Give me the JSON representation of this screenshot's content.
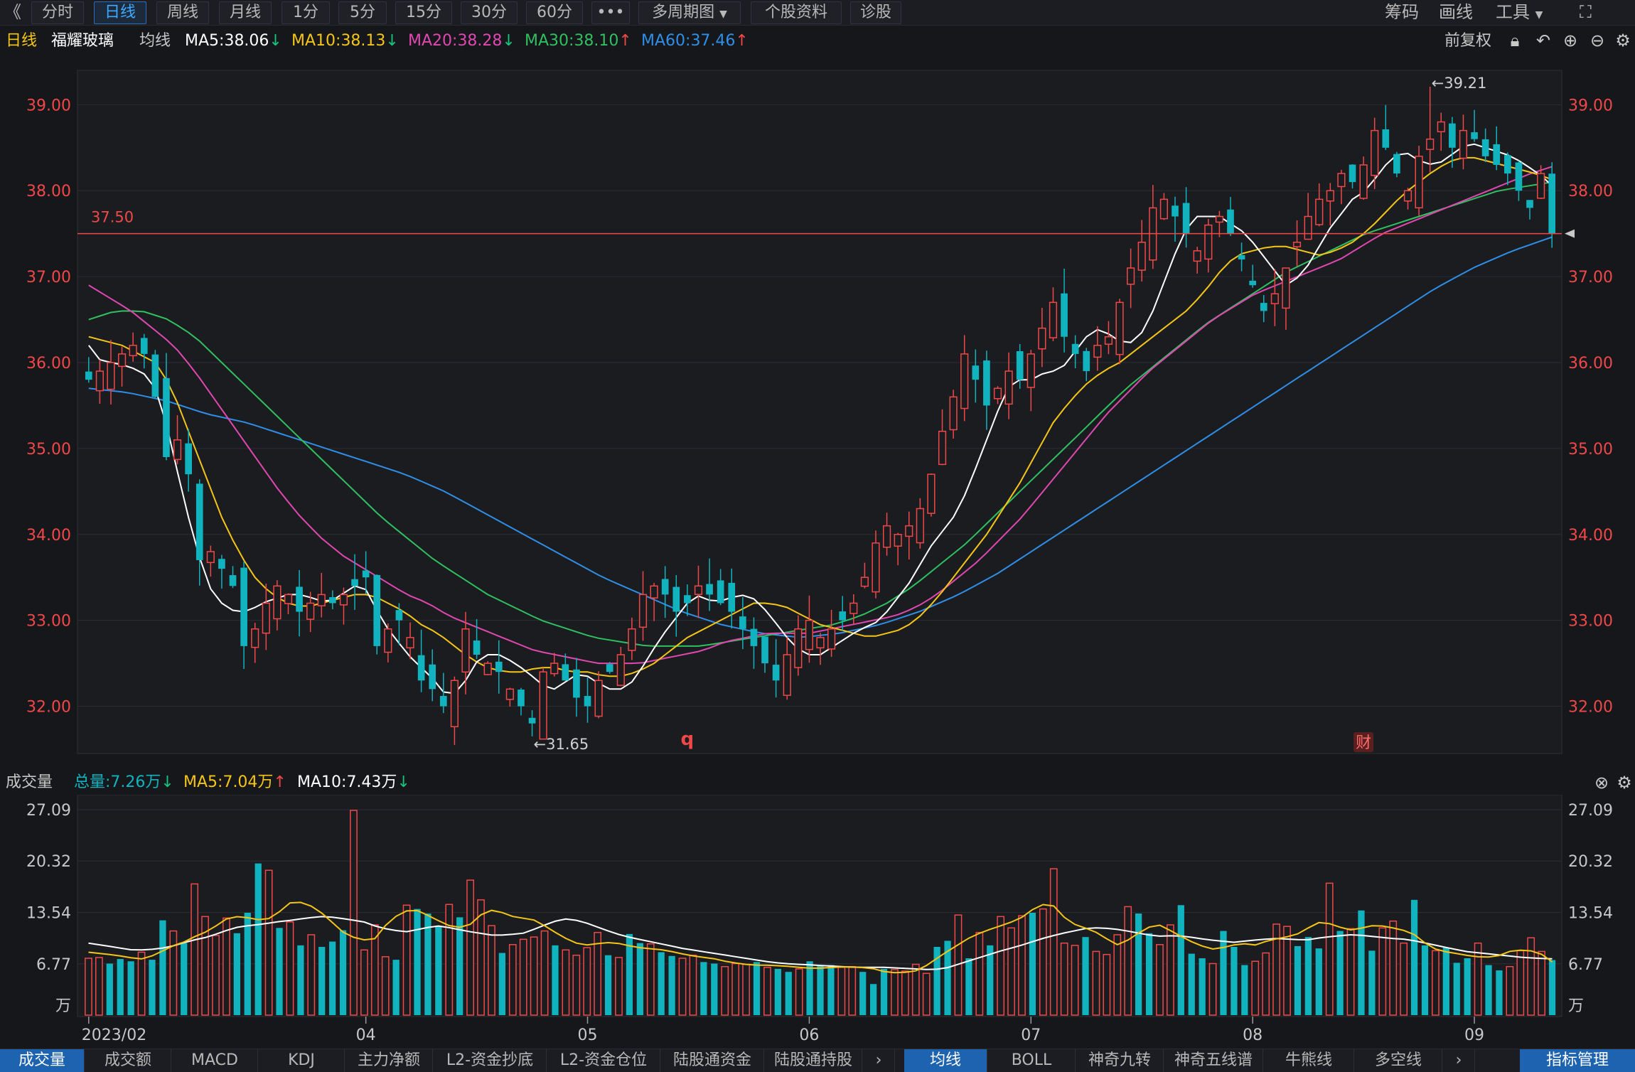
{
  "toolbar": {
    "back": "《",
    "periods": [
      "分时",
      "日线",
      "周线",
      "月线",
      "1分",
      "5分",
      "15分",
      "30分",
      "60分"
    ],
    "active_period": "日线",
    "more": "•••",
    "multi": "多周期图",
    "profile": "个股资料",
    "diagnose": "诊股",
    "right": [
      "筹码",
      "画线",
      "工具"
    ]
  },
  "info": {
    "period": "日线",
    "stock": "福耀玻璃",
    "ma_label": "均线",
    "ma5": "MA5:38.06",
    "ma10": "MA10:38.13",
    "ma20": "MA20:38.28",
    "ma30": "MA30:38.10",
    "ma60": "MA60:37.46",
    "adjust": "前复权"
  },
  "volume_info": {
    "title": "成交量",
    "total": "总量:7.26万",
    "ma5": "MA5:7.04万",
    "ma10": "MA10:7.43万"
  },
  "bottom_tabs": {
    "left": [
      "成交量",
      "成交额",
      "MACD",
      "KDJ",
      "主力净额",
      "L2-资金抄底",
      "L2-资金仓位",
      "陆股通资金",
      "陆股通持股"
    ],
    "right": [
      "均线",
      "BOLL",
      "神奇九转",
      "神奇五线谱",
      "牛熊线",
      "多空线"
    ],
    "manage": "指标管理",
    "chev": "›"
  },
  "colors": {
    "up": "#f04848",
    "down": "#11b3bf",
    "ma5": "#ffffff",
    "ma10": "#f5c518",
    "ma20": "#e048b0",
    "ma30": "#30c060",
    "ma60": "#2f8fe8",
    "grid": "#2c2d33"
  },
  "chart_data": [
    {
      "type": "candlestick",
      "y_ticks": [
        "39.00",
        "38.00",
        "37.00",
        "36.00",
        "35.00",
        "34.00",
        "33.00",
        "32.00"
      ],
      "ylim": [
        31.45,
        39.4
      ],
      "x_labels": [
        "2023/02",
        "04",
        "05",
        "06",
        "07",
        "08",
        "09"
      ],
      "x_label_index": [
        0,
        25,
        45,
        65,
        85,
        105,
        125
      ],
      "price_line": 37.5,
      "price_line_label": "37.50",
      "high_annotation": "←39.21",
      "high_value": 39.21,
      "high_index": 121,
      "low_annotation": "←31.65",
      "low_value": 31.65,
      "low_index": 40,
      "marker_q": "q",
      "marker_q_index": 54,
      "marker_cai": "财",
      "marker_cai_index": 115,
      "closes": [
        35.8,
        35.9,
        36.0,
        36.1,
        36.2,
        36.1,
        35.6,
        34.9,
        35.1,
        34.7,
        33.7,
        33.8,
        33.6,
        33.4,
        32.7,
        32.9,
        33.2,
        33.4,
        33.3,
        33.1,
        33.2,
        33.3,
        33.2,
        33.3,
        33.4,
        33.5,
        32.7,
        32.9,
        33.0,
        32.8,
        32.3,
        32.2,
        32.0,
        32.3,
        32.9,
        32.6,
        32.5,
        32.4,
        32.2,
        32.0,
        31.8,
        32.4,
        32.5,
        32.3,
        32.1,
        32.0,
        32.3,
        32.4,
        32.6,
        32.9,
        33.3,
        33.4,
        33.3,
        33.1,
        33.2,
        33.4,
        33.3,
        33.2,
        33.1,
        32.9,
        32.7,
        32.5,
        32.3,
        32.6,
        32.9,
        33.0,
        32.8,
        32.9,
        33.0,
        33.2,
        33.5,
        33.9,
        34.1,
        34.0,
        34.1,
        34.3,
        34.7,
        35.2,
        35.6,
        36.1,
        35.8,
        35.5,
        35.7,
        35.9,
        35.8,
        36.1,
        36.4,
        36.7,
        36.3,
        36.1,
        35.9,
        36.2,
        36.3,
        36.7,
        37.1,
        37.4,
        37.8,
        37.9,
        37.7,
        37.5,
        37.3,
        37.6,
        37.7,
        37.5,
        37.2,
        36.9,
        36.6,
        36.8,
        37.1,
        37.4,
        37.7,
        37.9,
        38.0,
        38.2,
        38.1,
        38.3,
        38.7,
        38.5,
        38.2,
        38.0,
        38.4,
        38.6,
        38.8,
        38.5,
        38.7,
        38.6,
        38.4,
        38.3,
        38.2,
        38.0,
        37.8,
        38.2,
        37.5
      ],
      "ma5": [
        36.2,
        36.0,
        36.0,
        35.95,
        35.9,
        35.7,
        35.2,
        34.5,
        33.9,
        33.4,
        33.2,
        33.1,
        33.1,
        33.2,
        33.25,
        33.3,
        33.3,
        33.25,
        33.2,
        33.3,
        33.4,
        33.35,
        33.0,
        32.8,
        32.6,
        32.45,
        32.3,
        32.1,
        32.2,
        32.5,
        32.6,
        32.6,
        32.5,
        32.4,
        32.25,
        32.2,
        32.3,
        32.4,
        32.3,
        32.2,
        32.2,
        32.3,
        32.55,
        32.8,
        33.0,
        33.2,
        33.3,
        33.2,
        33.25,
        33.3,
        33.25,
        33.1,
        32.9,
        32.7,
        32.6,
        32.6,
        32.7,
        32.8,
        32.9,
        32.95,
        33.1,
        33.3,
        33.5,
        33.8,
        34.0,
        34.2,
        34.5,
        34.9,
        35.3,
        35.7,
        35.8,
        35.8,
        35.9,
        35.9,
        36.1,
        36.3,
        36.4,
        36.3,
        36.2,
        36.3,
        36.6,
        37.0,
        37.4,
        37.7,
        37.7,
        37.7,
        37.6,
        37.5,
        37.3,
        37.1,
        36.9,
        37.0,
        37.2,
        37.5,
        37.7,
        37.9,
        38.0,
        38.2,
        38.4,
        38.45,
        38.35,
        38.3,
        38.35,
        38.5,
        38.55,
        38.5,
        38.45,
        38.4,
        38.3,
        38.2,
        38.06
      ],
      "ma10": [
        36.3,
        36.25,
        36.2,
        36.1,
        36.0,
        35.7,
        35.2,
        34.7,
        34.2,
        33.8,
        33.5,
        33.3,
        33.2,
        33.15,
        33.2,
        33.25,
        33.3,
        33.3,
        33.2,
        33.1,
        32.95,
        32.85,
        32.7,
        32.55,
        32.45,
        32.4,
        32.4,
        32.45,
        32.45,
        32.4,
        32.4,
        32.35,
        32.35,
        32.4,
        32.5,
        32.65,
        32.8,
        32.9,
        33.0,
        33.1,
        33.2,
        33.2,
        33.15,
        33.05,
        32.95,
        32.9,
        32.85,
        32.8,
        32.85,
        32.9,
        33.05,
        33.25,
        33.5,
        33.75,
        34.0,
        34.3,
        34.6,
        34.95,
        35.3,
        35.55,
        35.75,
        35.9,
        36.0,
        36.15,
        36.3,
        36.45,
        36.6,
        36.8,
        37.05,
        37.25,
        37.3,
        37.35,
        37.35,
        37.3,
        37.25,
        37.3,
        37.4,
        37.55,
        37.75,
        37.95,
        38.1,
        38.25,
        38.35,
        38.4,
        38.35,
        38.3,
        38.25,
        38.2,
        38.13
      ],
      "ma20": [
        36.9,
        36.75,
        36.6,
        36.4,
        36.2,
        35.9,
        35.55,
        35.2,
        34.85,
        34.5,
        34.2,
        33.95,
        33.75,
        33.6,
        33.45,
        33.3,
        33.2,
        33.05,
        32.95,
        32.85,
        32.75,
        32.65,
        32.6,
        32.55,
        32.5,
        32.5,
        32.5,
        32.55,
        32.6,
        32.65,
        32.75,
        32.8,
        32.85,
        32.85,
        32.85,
        32.9,
        32.95,
        33.0,
        33.05,
        33.15,
        33.3,
        33.5,
        33.7,
        33.95,
        34.2,
        34.5,
        34.8,
        35.1,
        35.4,
        35.65,
        35.9,
        36.1,
        36.3,
        36.5,
        36.65,
        36.8,
        36.9,
        37.0,
        37.1,
        37.2,
        37.35,
        37.5,
        37.6,
        37.7,
        37.8,
        37.9,
        38.0,
        38.1,
        38.2,
        38.28
      ],
      "ma30": [
        36.5,
        36.6,
        36.6,
        36.5,
        36.3,
        36.0,
        35.7,
        35.4,
        35.1,
        34.8,
        34.5,
        34.2,
        33.95,
        33.7,
        33.5,
        33.3,
        33.15,
        33.0,
        32.9,
        32.8,
        32.75,
        32.7,
        32.7,
        32.7,
        32.75,
        32.8,
        32.85,
        32.9,
        32.95,
        33.05,
        33.2,
        33.4,
        33.65,
        33.9,
        34.2,
        34.5,
        34.8,
        35.1,
        35.4,
        35.7,
        35.95,
        36.2,
        36.45,
        36.65,
        36.85,
        37.05,
        37.2,
        37.35,
        37.5,
        37.6,
        37.7,
        37.8,
        37.9,
        38.0,
        38.05,
        38.1
      ],
      "ma60": [
        35.7,
        35.65,
        35.55,
        35.4,
        35.3,
        35.15,
        35.0,
        34.85,
        34.7,
        34.5,
        34.25,
        34.0,
        33.75,
        33.5,
        33.3,
        33.1,
        32.95,
        32.85,
        32.8,
        32.85,
        32.95,
        33.1,
        33.3,
        33.55,
        33.85,
        34.15,
        34.45,
        34.75,
        35.05,
        35.35,
        35.65,
        35.95,
        36.25,
        36.55,
        36.85,
        37.1,
        37.3,
        37.46
      ]
    },
    {
      "type": "bar",
      "name": "成交量",
      "y_ticks": [
        "27.09",
        "20.32",
        "13.54",
        "6.77",
        "万"
      ],
      "ylim": [
        0,
        27.09
      ],
      "values": [
        7.5,
        7.6,
        6.8,
        7.4,
        7.1,
        8.3,
        7.3,
        12.5,
        11.1,
        9.5,
        17.3,
        13.0,
        10.5,
        12.8,
        10.8,
        13.5,
        20.0,
        19.1,
        11.5,
        12.3,
        9.2,
        10.6,
        9.0,
        9.7,
        11.2,
        27.0,
        8.6,
        11.9,
        7.7,
        7.3,
        14.5,
        14.0,
        13.4,
        11.7,
        14.6,
        12.9,
        17.8,
        15.2,
        11.8,
        8.2,
        9.3,
        10.0,
        10.3,
        11.1,
        9.2,
        8.6,
        7.9,
        8.9,
        10.9,
        7.9,
        7.6,
        10.7,
        9.5,
        9.4,
        8.3,
        7.8,
        7.5,
        7.9,
        7.0,
        6.8,
        6.4,
        6.8,
        6.7,
        7.0,
        6.3,
        6.1,
        5.7,
        6.1,
        7.1,
        6.6,
        6.6,
        6.3,
        6.4,
        5.7,
        4.1,
        6.1,
        6.0,
        5.8,
        6.7,
        5.5,
        9.0,
        9.8,
        13.2,
        7.5,
        10.9,
        9.2,
        13.0,
        11.5,
        13.1,
        13.5,
        14.0,
        19.3,
        9.5,
        9.2,
        10.3,
        8.4,
        8.0,
        10.6,
        14.3,
        13.4,
        10.8,
        9.3,
        11.9,
        14.5,
        8.1,
        7.5,
        6.8,
        11.1,
        9.0,
        6.6,
        7.1,
        8.2,
        12.0,
        11.7,
        9.1,
        10.3,
        8.8,
        17.4,
        11.1,
        11.4,
        13.8,
        8.5,
        11.5,
        12.4,
        9.5,
        15.2,
        9.2,
        8.5,
        8.9,
        6.9,
        7.5,
        9.5,
        6.6,
        5.9,
        6.4,
        8.5,
        10.2,
        8.4,
        7.26
      ],
      "ma5_line": [
        8.3,
        8.1,
        7.9,
        7.6,
        7.4,
        8.0,
        9.0,
        9.6,
        10.5,
        11.2,
        12.6,
        13.0,
        12.8,
        12.4,
        13.5,
        15.0,
        14.8,
        13.8,
        12.2,
        10.6,
        10.0,
        9.8,
        12.0,
        13.5,
        14.0,
        13.2,
        12.3,
        11.5,
        11.7,
        13.3,
        14.0,
        13.1,
        12.8,
        12.5,
        11.4,
        10.3,
        9.5,
        9.2,
        9.6,
        9.5,
        9.1,
        8.8,
        8.7,
        8.4,
        8.0,
        7.7,
        7.5,
        7.1,
        6.8,
        6.6,
        6.6,
        6.5,
        6.4,
        6.2,
        6.2,
        6.3,
        6.4,
        6.3,
        6.1,
        5.6,
        5.6,
        5.8,
        6.7,
        8.0,
        9.1,
        10.2,
        11.0,
        11.6,
        12.2,
        13.0,
        14.4,
        14.8,
        12.9,
        11.7,
        11.3,
        10.2,
        9.2,
        10.2,
        11.5,
        11.9,
        11.0,
        10.0,
        9.2,
        8.7,
        9.0,
        9.5,
        9.2,
        9.8,
        10.2,
        10.5,
        11.5,
        12.4,
        11.8,
        11.2,
        11.5,
        11.9,
        11.6,
        11.2,
        10.5,
        8.9,
        8.4,
        8.1,
        7.8,
        7.6,
        7.8,
        8.5,
        8.6,
        8.3,
        7.04
      ],
      "ma10_line": [
        9.5,
        9.2,
        8.9,
        8.6,
        8.6,
        8.8,
        9.2,
        9.8,
        10.2,
        10.8,
        11.5,
        11.8,
        12.0,
        12.3,
        12.5,
        12.8,
        13.0,
        12.9,
        12.6,
        12.3,
        11.6,
        11.2,
        11.0,
        11.4,
        11.8,
        11.5,
        11.1,
        10.8,
        10.5,
        10.6,
        10.8,
        11.5,
        12.3,
        12.7,
        12.4,
        11.7,
        11.0,
        10.4,
        10.0,
        9.6,
        9.2,
        8.8,
        8.5,
        8.2,
        7.9,
        7.6,
        7.3,
        7.0,
        6.8,
        6.7,
        6.6,
        6.5,
        6.4,
        6.3,
        6.3,
        6.3,
        6.2,
        6.1,
        6.0,
        6.1,
        6.7,
        7.3,
        7.9,
        8.5,
        9.0,
        9.6,
        10.2,
        10.7,
        11.1,
        11.5,
        11.5,
        11.3,
        11.0,
        10.6,
        10.4,
        10.5,
        10.3,
        10.0,
        9.8,
        9.6,
        9.8,
        10.0,
        10.1,
        10.0,
        9.9,
        10.2,
        10.4,
        10.6,
        10.5,
        10.3,
        10.1,
        10.0,
        9.6,
        9.2,
        8.8,
        8.4,
        8.2,
        8.0,
        7.8,
        7.6,
        7.5,
        7.43
      ]
    }
  ]
}
